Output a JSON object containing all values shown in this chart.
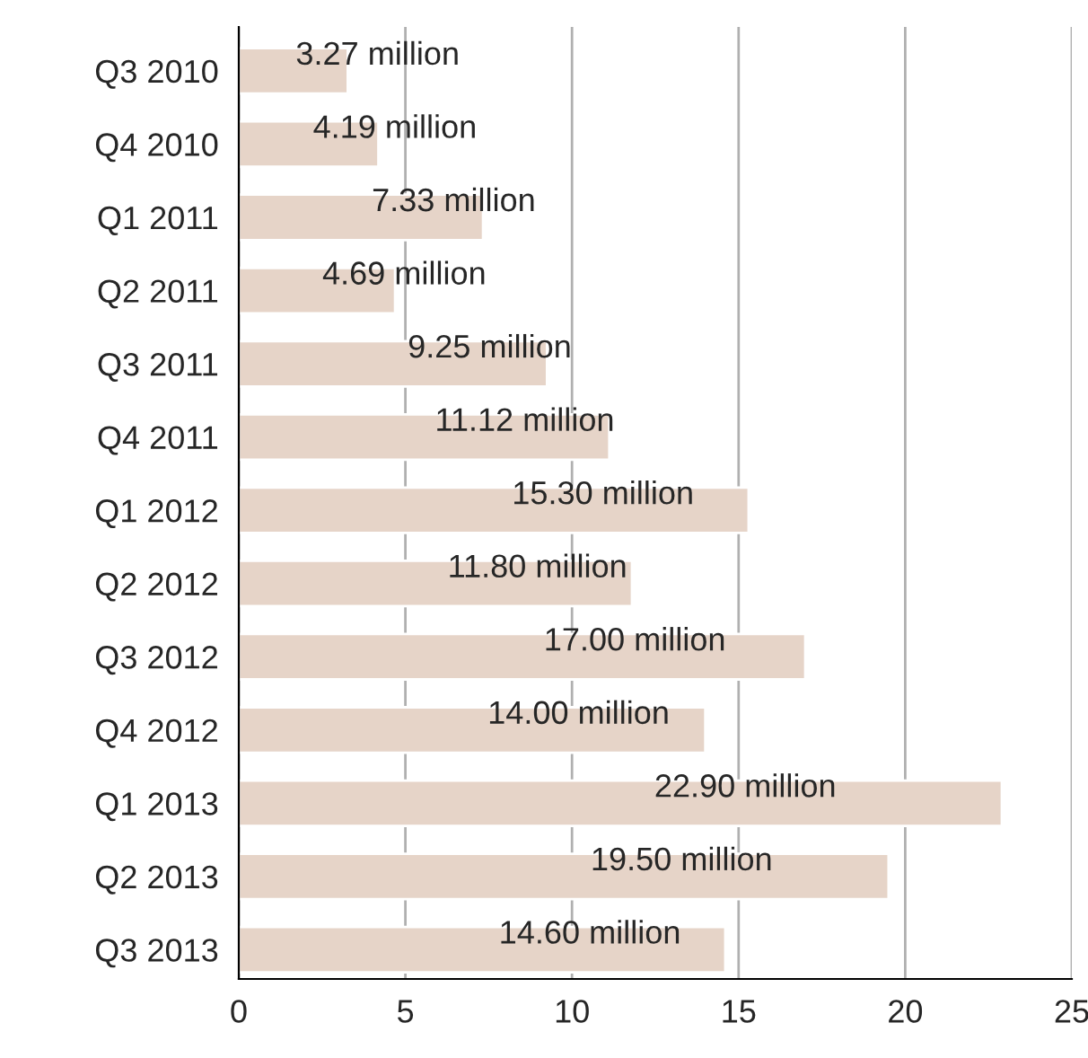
{
  "chart_data": {
    "type": "bar",
    "orientation": "horizontal",
    "categories": [
      "Q3 2010",
      "Q4 2010",
      "Q1 2011",
      "Q2 2011",
      "Q3 2011",
      "Q4 2011",
      "Q1 2012",
      "Q2 2012",
      "Q3 2012",
      "Q4 2012",
      "Q1 2013",
      "Q2 2013",
      "Q3 2013"
    ],
    "values": [
      3.27,
      4.19,
      7.33,
      4.69,
      9.25,
      11.12,
      15.3,
      11.8,
      17.0,
      14.0,
      22.9,
      19.5,
      14.6
    ],
    "value_labels": [
      "3.27 million",
      "4.19 million",
      "7.33 million",
      "4.69 million",
      "9.25 million",
      "11.12 million",
      "15.30 million",
      "11.80 million",
      "17.00 million",
      "14.00 million",
      "22.90 million",
      "19.50 million",
      "14.60 million"
    ],
    "color": "#e6d4c8",
    "xlim": [
      0,
      25
    ],
    "xticks": [
      0,
      5,
      10,
      15,
      20,
      25
    ],
    "grid": "x"
  }
}
